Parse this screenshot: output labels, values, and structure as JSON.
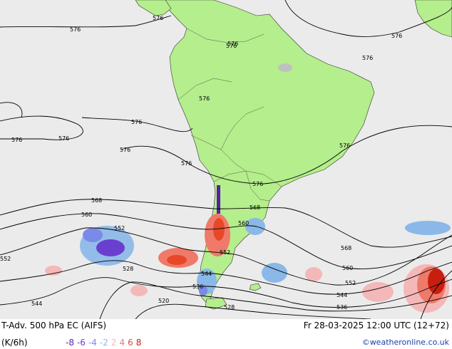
{
  "footer": {
    "title": "T-Adv. 500 hPa   EC (AIFS)",
    "datetime": "Fr 28-03-2025 12:00 UTC (12+72)",
    "unit": "(K/6h)",
    "credit": "©weatheronline.co.uk"
  },
  "legend": [
    {
      "label": "-8",
      "color": "#5a1fa8"
    },
    {
      "label": "-6",
      "color": "#6a3fd0"
    },
    {
      "label": "-4",
      "color": "#7a8ae8"
    },
    {
      "label": "-2",
      "color": "#8ab8e8"
    },
    {
      "label": "2",
      "color": "#f4b8b8"
    },
    {
      "label": "4",
      "color": "#ef7a6a"
    },
    {
      "label": "6",
      "color": "#e84828"
    },
    {
      "label": "8",
      "color": "#c81e10"
    }
  ],
  "contour_labels": [
    "576",
    "576",
    "576",
    "576",
    "576",
    "576",
    "576",
    "576",
    "576",
    "576",
    "576",
    "576",
    "576",
    "576",
    "568",
    "568",
    "568",
    "560",
    "560",
    "560",
    "552",
    "552",
    "552",
    "552",
    "544",
    "544",
    "544",
    "536",
    "536",
    "528",
    "528",
    "520"
  ]
}
